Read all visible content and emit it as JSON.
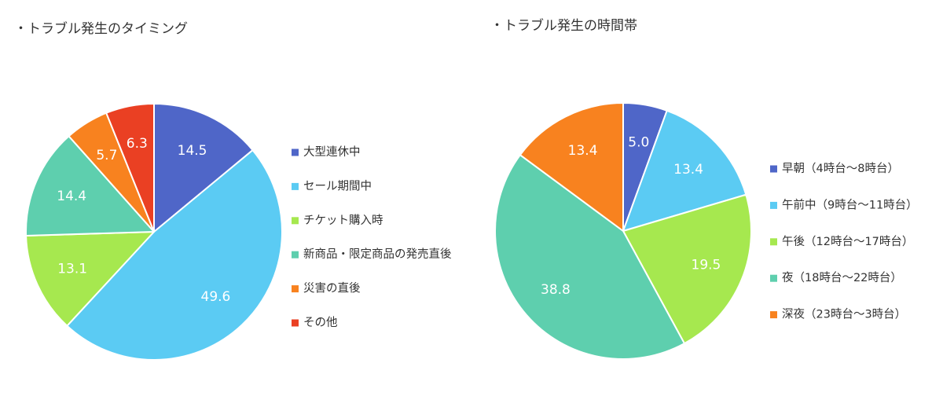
{
  "chart_data": [
    {
      "type": "pie",
      "title": "・トラブル発生のタイミング",
      "categories": [
        "大型連休中",
        "セール期間中",
        "チケット購入時",
        "新商品・限定商品の発売直後",
        "災害の直後",
        "その他"
      ],
      "values": [
        14.5,
        49.6,
        13.1,
        14.4,
        5.7,
        6.3
      ],
      "value_labels": [
        "14.5",
        "49.6",
        "13.1",
        "14.4",
        "5.7",
        "6.3"
      ],
      "colors": [
        "#4f66c8",
        "#5bcbf3",
        "#a6e84f",
        "#5ecfae",
        "#f8821f",
        "#ea4023"
      ],
      "legend_position": "right"
    },
    {
      "type": "pie",
      "title": "・トラブル発生の時間帯",
      "categories": [
        "早朝（4時台～8時台）",
        "午前中（9時台～11時台）",
        "午後（12時台～17時台）",
        "夜（18時台～22時台）",
        "深夜（23時台～3時台）"
      ],
      "values": [
        5.0,
        13.4,
        19.5,
        38.8,
        13.4
      ],
      "value_labels": [
        "5.0",
        "13.4",
        "19.5",
        "38.8",
        "13.4"
      ],
      "colors": [
        "#4f66c8",
        "#5bcbf3",
        "#a6e84f",
        "#5ecfae",
        "#f8821f"
      ],
      "legend_position": "right"
    }
  ]
}
